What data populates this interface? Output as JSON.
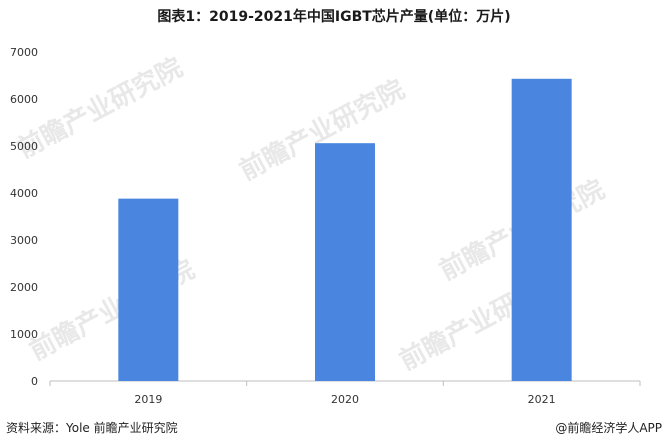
{
  "title": "图表1：2019-2021年中国IGBT芯片产量(单位：万片)",
  "source": "资料来源：Yole 前瞻产业研究院",
  "brand": "@前瞻经济学人APP",
  "watermark": "前瞻产业研究院",
  "colors": {
    "bar": "#4a86e0",
    "axis": "#bfbfbf",
    "text": "#333333"
  },
  "chart_data": {
    "type": "bar",
    "categories": [
      "2019",
      "2020",
      "2021"
    ],
    "values": [
      3880,
      5060,
      6430
    ],
    "ylim": [
      0,
      7000
    ],
    "yticks": [
      0,
      1000,
      2000,
      3000,
      4000,
      5000,
      6000,
      7000
    ],
    "grid": false
  }
}
